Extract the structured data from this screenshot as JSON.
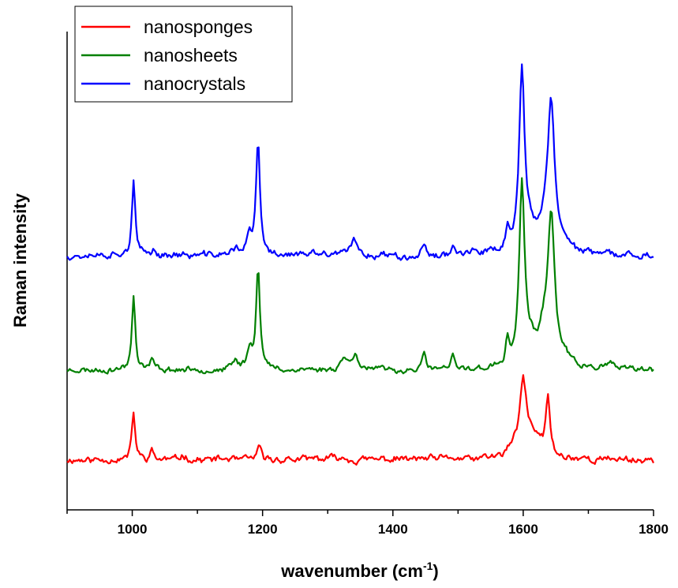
{
  "chart_data": {
    "type": "line",
    "xlabel": "wavenumber (cm",
    "xlabel_sup": "-1",
    "xlabel_close": ")",
    "ylabel": "Raman intensity",
    "xlim": [
      900,
      1800
    ],
    "ylim": [
      0,
      100
    ],
    "xticks": [
      1000,
      1200,
      1400,
      1600,
      1800
    ],
    "grid": false,
    "legend_position": "top-left",
    "yaxis_values_shown": false,
    "series": [
      {
        "name": "nanosponges",
        "color": "#ff0000",
        "baseline": 10.5,
        "noise": 0.55,
        "seed": 11,
        "peaks": [
          [
            1002,
            10.0,
            3
          ],
          [
            1030,
            1.8,
            4
          ],
          [
            1078,
            0.8,
            6
          ],
          [
            1195,
            2.2,
            4
          ],
          [
            1320,
            0.6,
            10
          ],
          [
            1600,
            14.7,
            6
          ],
          [
            1612,
            4.0,
            10
          ],
          [
            1625,
            2.0,
            6
          ],
          [
            1638,
            12.0,
            4
          ],
          [
            1585,
            2.0,
            10
          ]
        ]
      },
      {
        "name": "nanosheets",
        "color": "#008000",
        "baseline": 29.2,
        "noise": 0.45,
        "seed": 23,
        "peaks": [
          [
            1002,
            15.9,
            3
          ],
          [
            1030,
            1.8,
            4
          ],
          [
            1158,
            2.0,
            5
          ],
          [
            1180,
            4.0,
            5
          ],
          [
            1193,
            21.4,
            3.5
          ],
          [
            1325,
            2.8,
            6
          ],
          [
            1343,
            3.5,
            5
          ],
          [
            1448,
            3.5,
            3
          ],
          [
            1492,
            2.8,
            3
          ],
          [
            1576,
            5.0,
            3
          ],
          [
            1598,
            38.0,
            5
          ],
          [
            1612,
            3.5,
            8
          ],
          [
            1632,
            6.0,
            10
          ],
          [
            1643,
            30.0,
            6.5
          ],
          [
            1665,
            2.0,
            8
          ],
          [
            1735,
            0.8,
            10
          ]
        ]
      },
      {
        "name": "nanocrystals",
        "color": "#0000ff",
        "baseline": 53.2,
        "noise": 0.55,
        "seed": 37,
        "peaks": [
          [
            1002,
            15.1,
            3
          ],
          [
            1032,
            1.0,
            4
          ],
          [
            1160,
            1.5,
            6
          ],
          [
            1180,
            3.5,
            5
          ],
          [
            1193,
            23.6,
            3.5
          ],
          [
            1340,
            3.0,
            6
          ],
          [
            1447,
            2.0,
            3
          ],
          [
            1493,
            2.5,
            3
          ],
          [
            1576,
            5.0,
            3
          ],
          [
            1598,
            37.5,
            5
          ],
          [
            1612,
            3.0,
            8
          ],
          [
            1632,
            5.0,
            10
          ],
          [
            1643,
            29.8,
            6.5
          ],
          [
            1665,
            2.0,
            8
          ]
        ]
      }
    ]
  }
}
